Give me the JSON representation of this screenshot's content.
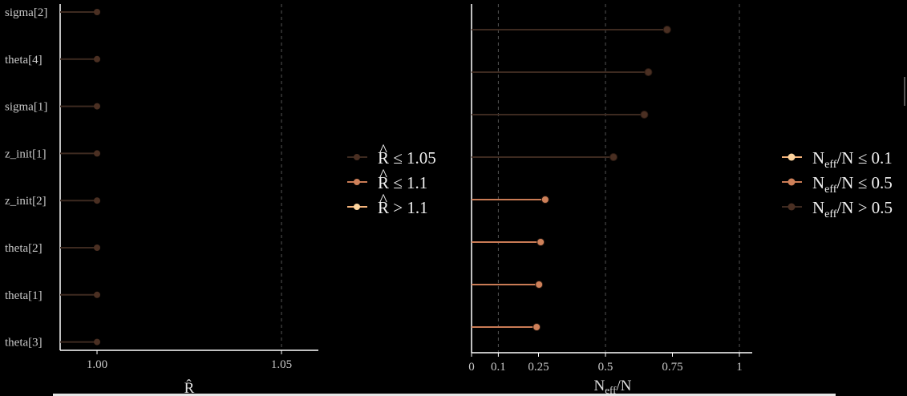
{
  "colors": {
    "low": "#fdd49e",
    "mid": "#ce8059",
    "high": "#4a2f22",
    "line_low": "#f3b27a",
    "line_mid": "#c97b55",
    "line_high": "#3d2a20",
    "axis": "#ffffff",
    "grid": "#555555"
  },
  "chart_data": [
    {
      "type": "lollipop",
      "title": "",
      "xlabel": "R̂",
      "xlim": [
        0.99,
        1.06
      ],
      "xticks": [
        1.0,
        1.05
      ],
      "xtick_labels": [
        "1.00",
        "1.05"
      ],
      "vlines": [
        1.05
      ],
      "categories": [
        "sigma[2]",
        "theta[4]",
        "sigma[1]",
        "z_init[1]",
        "z_init[2]",
        "theta[2]",
        "theta[1]",
        "theta[3]"
      ],
      "values": [
        1.0,
        1.0,
        1.0,
        1.0,
        1.0,
        1.0,
        1.0,
        1.0
      ],
      "value_class": [
        "high",
        "high",
        "high",
        "high",
        "high",
        "high",
        "high",
        "high"
      ],
      "legend": {
        "position": "right",
        "entries": [
          {
            "base": "R",
            "hat": "^",
            "rest": " ≤ 1.05",
            "class": "high"
          },
          {
            "base": "R",
            "hat": "^",
            "rest": " ≤ 1.1",
            "class": "mid"
          },
          {
            "base": "R",
            "hat": "^",
            "rest": " > 1.1",
            "class": "low"
          }
        ]
      }
    },
    {
      "type": "lollipop",
      "title": "",
      "xlabel_main": "N",
      "xlabel_sub": "eff",
      "xlabel_rest": "/N",
      "xlim": [
        0,
        1.05
      ],
      "xticks": [
        0,
        0.1,
        0.25,
        0.5,
        0.75,
        1
      ],
      "xtick_labels": [
        "0",
        "0.1",
        "0.25",
        "0.5",
        "0.75",
        "1"
      ],
      "vlines": [
        0.1,
        0.5,
        1
      ],
      "values": [
        0.73,
        0.66,
        0.645,
        0.53,
        0.275,
        0.258,
        0.252,
        0.243
      ],
      "value_class": [
        "high",
        "high",
        "high",
        "high",
        "mid",
        "mid",
        "mid",
        "mid"
      ],
      "legend": {
        "position": "right",
        "entries": [
          {
            "base": "N",
            "sub": "eff",
            "rest": "/N ≤ 0.1",
            "class": "low"
          },
          {
            "base": "N",
            "sub": "eff",
            "rest": "/N ≤ 0.5",
            "class": "mid"
          },
          {
            "base": "N",
            "sub": "eff",
            "rest": "/N > 0.5",
            "class": "high"
          }
        ]
      }
    }
  ]
}
